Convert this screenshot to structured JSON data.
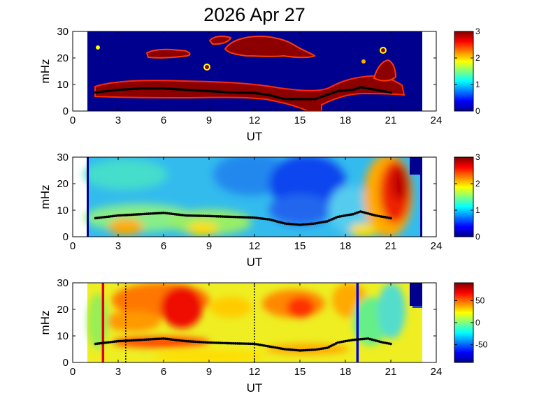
{
  "title": "2026 Apr 27",
  "chart_data": [
    {
      "type": "heatmap",
      "xlabel": "UT",
      "ylabel": "mHz",
      "xlim": [
        0,
        24
      ],
      "ylim": [
        0,
        30
      ],
      "xticks": [
        "0",
        "3",
        "6",
        "9",
        "12",
        "15",
        "18",
        "21",
        "24"
      ],
      "yticks": [
        "0",
        "10",
        "20",
        "30"
      ],
      "data_range_ut": [
        1,
        23
      ],
      "colorbar": {
        "range": [
          0,
          3
        ],
        "ticks": [
          "0",
          "1",
          "2",
          "3"
        ]
      },
      "trace_freq_mhz": [
        [
          1.5,
          7
        ],
        [
          3,
          8
        ],
        [
          4.5,
          8.5
        ],
        [
          6,
          8.5
        ],
        [
          7.5,
          8
        ],
        [
          9,
          7.5
        ],
        [
          10.5,
          7
        ],
        [
          12,
          6.8
        ],
        [
          13,
          6
        ],
        [
          14,
          4.5
        ],
        [
          15,
          4.5
        ],
        [
          16,
          4.5
        ],
        [
          16.5,
          5.5
        ],
        [
          17.5,
          7.5
        ],
        [
          18.5,
          8
        ],
        [
          19,
          9
        ],
        [
          20,
          8
        ],
        [
          21,
          7
        ]
      ]
    },
    {
      "type": "heatmap",
      "xlabel": "UT",
      "ylabel": "mHz",
      "xlim": [
        0,
        24
      ],
      "ylim": [
        0,
        30
      ],
      "xticks": [
        "0",
        "3",
        "6",
        "9",
        "12",
        "15",
        "18",
        "21",
        "24"
      ],
      "yticks": [
        "0",
        "10",
        "20",
        "30"
      ],
      "data_range_ut": [
        1,
        23
      ],
      "colorbar": {
        "range": [
          0,
          3
        ],
        "ticks": [
          "0",
          "1",
          "2",
          "3"
        ]
      },
      "trace_freq_mhz": [
        [
          1.5,
          7
        ],
        [
          3,
          8
        ],
        [
          4.5,
          8.5
        ],
        [
          6,
          9
        ],
        [
          7.5,
          8
        ],
        [
          9,
          7.8
        ],
        [
          10.5,
          7.5
        ],
        [
          12,
          7.2
        ],
        [
          13,
          6.5
        ],
        [
          14,
          5
        ],
        [
          15,
          4.5
        ],
        [
          16,
          5
        ],
        [
          16.8,
          5.8
        ],
        [
          17.5,
          7.5
        ],
        [
          18.5,
          8.5
        ],
        [
          19,
          9.5
        ],
        [
          20,
          8
        ],
        [
          21,
          7
        ]
      ]
    },
    {
      "type": "heatmap",
      "xlabel": "UT",
      "ylabel": "mHz",
      "xlim": [
        0,
        24
      ],
      "ylim": [
        0,
        30
      ],
      "xticks": [
        "0",
        "3",
        "6",
        "9",
        "12",
        "15",
        "18",
        "21",
        "24"
      ],
      "yticks": [
        "0",
        "10",
        "20",
        "30"
      ],
      "data_range_ut": [
        1,
        23
      ],
      "colorbar": {
        "range": [
          -90,
          90
        ],
        "ticks": [
          "50",
          "0",
          "-50"
        ],
        "tick_values": [
          50,
          0,
          -50
        ]
      },
      "vertical_markers": [
        {
          "ut": 2.0,
          "color": "#e00000",
          "style": "solid"
        },
        {
          "ut": 3.5,
          "color": "#000000",
          "style": "dotted"
        },
        {
          "ut": 12.0,
          "color": "#000000",
          "style": "dotted"
        },
        {
          "ut": 18.8,
          "color": "#0000d0",
          "style": "solid"
        }
      ],
      "trace_freq_mhz": [
        [
          1.5,
          7
        ],
        [
          3,
          8
        ],
        [
          4.5,
          8.5
        ],
        [
          6,
          9
        ],
        [
          7.5,
          8
        ],
        [
          9,
          7.5
        ],
        [
          10.5,
          7.2
        ],
        [
          12,
          7
        ],
        [
          13,
          6
        ],
        [
          14,
          5
        ],
        [
          15,
          4.5
        ],
        [
          16,
          4.8
        ],
        [
          16.8,
          5.5
        ],
        [
          17.5,
          7.5
        ],
        [
          18.5,
          8.5
        ],
        [
          19.5,
          9
        ],
        [
          20.5,
          7.5
        ],
        [
          21,
          7
        ]
      ]
    }
  ]
}
